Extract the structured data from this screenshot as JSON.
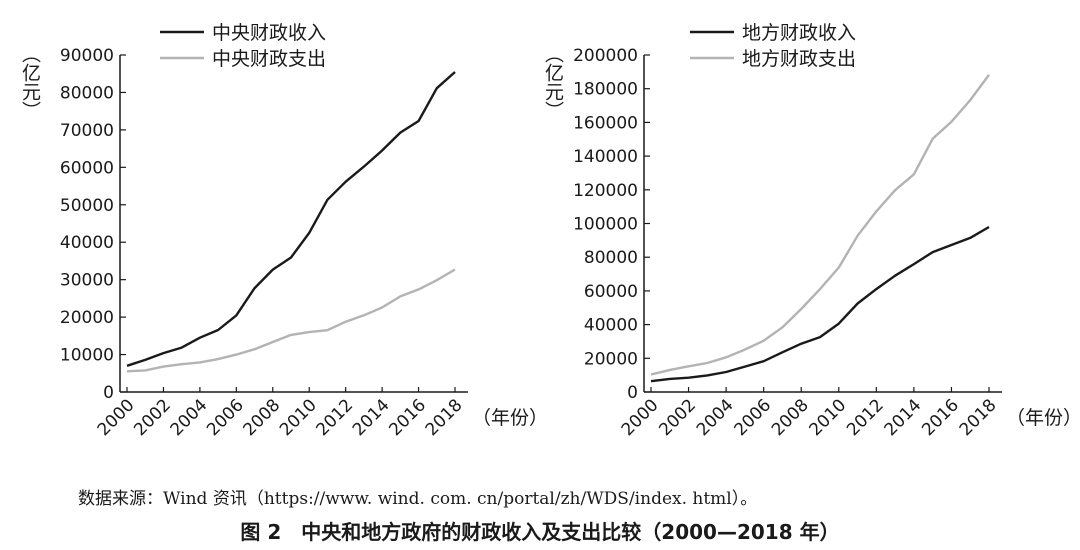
{
  "chart_data": [
    {
      "type": "line",
      "x": [
        2000,
        2001,
        2002,
        2003,
        2004,
        2005,
        2006,
        2007,
        2008,
        2009,
        2010,
        2011,
        2012,
        2013,
        2014,
        2015,
        2016,
        2017,
        2018
      ],
      "series": [
        {
          "name": "中央财政收入",
          "color": "#1a1a1a",
          "values": [
            6989,
            8583,
            10389,
            11865,
            14503,
            16549,
            20457,
            27749,
            32681,
            35916,
            42488,
            51327,
            56175,
            60198,
            64493,
            69267,
            72366,
            81123,
            85456
          ]
        },
        {
          "name": "中央财政支出",
          "color": "#b3b3b3",
          "values": [
            5520,
            5768,
            6772,
            7420,
            7894,
            8776,
            9991,
            11442,
            13344,
            15256,
            15990,
            16514,
            18765,
            20472,
            22570,
            25542,
            27404,
            29859,
            32708
          ]
        }
      ],
      "ylabel": "（亿元）",
      "xlabel": "（年份）",
      "ylim": [
        0,
        90000
      ],
      "yticks": [
        0,
        10000,
        20000,
        30000,
        40000,
        50000,
        60000,
        70000,
        80000,
        90000
      ],
      "xticks": [
        2000,
        2002,
        2004,
        2006,
        2008,
        2010,
        2012,
        2014,
        2016,
        2018
      ],
      "grid": false,
      "legend": "top-left"
    },
    {
      "type": "line",
      "x": [
        2000,
        2001,
        2002,
        2003,
        2004,
        2005,
        2006,
        2007,
        2008,
        2009,
        2010,
        2011,
        2012,
        2013,
        2014,
        2015,
        2016,
        2017,
        2018
      ],
      "series": [
        {
          "name": "地方财政收入",
          "color": "#1a1a1a",
          "values": [
            6406,
            7803,
            8515,
            9850,
            11893,
            15101,
            18304,
            23573,
            28650,
            32603,
            40613,
            52547,
            61078,
            69011,
            75877,
            83002,
            87239,
            91469,
            97903
          ]
        },
        {
          "name": "地方财政支出",
          "color": "#b3b3b3",
          "values": [
            10367,
            13135,
            15281,
            17230,
            20593,
            25154,
            30431,
            38339,
            49248,
            61044,
            73884,
            92734,
            107188,
            119740,
            129215,
            150336,
            160351,
            173228,
            188198
          ]
        }
      ],
      "ylabel": "（亿元）",
      "xlabel": "（年份）",
      "ylim": [
        0,
        200000
      ],
      "yticks": [
        0,
        20000,
        40000,
        60000,
        80000,
        100000,
        120000,
        140000,
        160000,
        180000,
        200000
      ],
      "xticks": [
        2000,
        2002,
        2004,
        2006,
        2008,
        2010,
        2012,
        2014,
        2016,
        2018
      ],
      "grid": false,
      "legend": "top-left"
    }
  ],
  "source_note": "数据来源：Wind 资讯（https://www. wind. com. cn/portal/zh/WDS/index. html）。",
  "figure_title": "图 2　中央和地方政府的财政收入及支出比较（2000—2018 年）"
}
